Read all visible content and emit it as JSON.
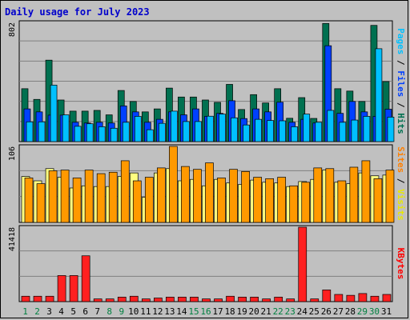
{
  "chart_data": {
    "type": "bar",
    "title": "Daily usage for July 2023",
    "categories": [
      "1",
      "2",
      "3",
      "4",
      "5",
      "6",
      "7",
      "8",
      "9",
      "10",
      "11",
      "12",
      "13",
      "14",
      "15",
      "16",
      "17",
      "18",
      "19",
      "20",
      "21",
      "22",
      "23",
      "24",
      "25",
      "26",
      "27",
      "28",
      "29",
      "30",
      "31"
    ],
    "weekend_days": [
      "1",
      "2",
      "8",
      "9",
      "15",
      "16",
      "22",
      "23",
      "29",
      "30"
    ],
    "panels": [
      {
        "name": "hits-files-pages",
        "scale_max": 802,
        "scale_label": "802",
        "axis_label_parts": [
          {
            "text": "Pages",
            "color": "#00c0ff"
          },
          {
            "text": " / ",
            "color": "#000000"
          },
          {
            "text": "Files",
            "color": "#0040ff"
          },
          {
            "text": " / ",
            "color": "#000000"
          },
          {
            "text": "Hits",
            "color": "#007050"
          }
        ],
        "series": [
          {
            "name": "Hits",
            "color": "#007050",
            "values": [
              356,
              284,
              548,
              280,
              205,
              205,
              210,
              180,
              344,
              270,
              200,
              220,
              360,
              300,
              300,
              280,
              264,
              385,
              216,
              316,
              260,
              356,
              157,
              296,
              156,
              795,
              356,
              340,
              270,
              782,
              404
            ]
          },
          {
            "name": "Files",
            "color": "#0040ff",
            "values": [
              220,
              200,
              178,
              178,
              130,
              125,
              130,
              125,
              240,
              200,
              130,
              150,
              200,
              180,
              220,
              170,
              190,
              275,
              155,
              220,
              200,
              265,
              130,
              150,
              125,
              645,
              190,
              270,
              200,
              170,
              218
            ]
          },
          {
            "name": "Pages",
            "color": "#00c0ff",
            "values": [
              133,
              133,
              380,
              180,
              103,
              120,
              100,
              90,
              130,
              170,
              80,
              123,
              205,
              135,
              135,
              171,
              185,
              160,
              112,
              150,
              142,
              140,
              100,
              185,
              130,
              210,
              130,
              145,
              170,
              625,
              165
            ]
          }
        ]
      },
      {
        "name": "visits-sites",
        "scale_max": 106,
        "scale_label": "106",
        "axis_label_parts": [
          {
            "text": "Sites",
            "color": "#ff8000"
          },
          {
            "text": " / ",
            "color": "#000000"
          },
          {
            "text": "Visits",
            "color": "#e8e800"
          }
        ],
        "series": [
          {
            "name": "Visits",
            "color": "#ffff80",
            "values": [
              64,
              58,
              75,
              63,
              48,
              51,
              50,
              50,
              64,
              69,
              35,
              69,
              75,
              58,
              60,
              51,
              60,
              55,
              53,
              59,
              56,
              55,
              50,
              57,
              60,
              73,
              56,
              54,
              69,
              65,
              66
            ]
          },
          {
            "name": "Sites",
            "color": "#ff9900",
            "values": [
              62,
              54,
              72,
              73,
              62,
              73,
              68,
              70,
              86,
              58,
              63,
              76,
              106,
              78,
              74,
              83,
              62,
              74,
              71,
              63,
              61,
              63,
              51,
              56,
              76,
              75,
              58,
              77,
              86,
              61,
              73
            ]
          }
        ]
      },
      {
        "name": "kbytes",
        "scale_max": 41418,
        "scale_label": "41418",
        "axis_label_parts": [
          {
            "text": "KBytes",
            "color": "#ff0000"
          }
        ],
        "series": [
          {
            "name": "KBytes",
            "color": "#ff2020",
            "values": [
              3000,
              3000,
              3000,
              14500,
              14500,
              25500,
              1500,
              1500,
              2500,
              3000,
              1500,
              2000,
              2500,
              2500,
              2500,
              1500,
              1500,
              3000,
              2500,
              2500,
              1500,
              2500,
              1500,
              41418,
              1500,
              6500,
              4000,
              3500,
              4500,
              3000,
              4000
            ]
          }
        ]
      }
    ],
    "colors": {
      "background": "#c0c0c0",
      "plot_background": "#c0c0c0",
      "gridline": "#808080",
      "title": "#0000cc",
      "weekday_label": "#000000",
      "weekend_label": "#008040"
    },
    "grid": true
  }
}
